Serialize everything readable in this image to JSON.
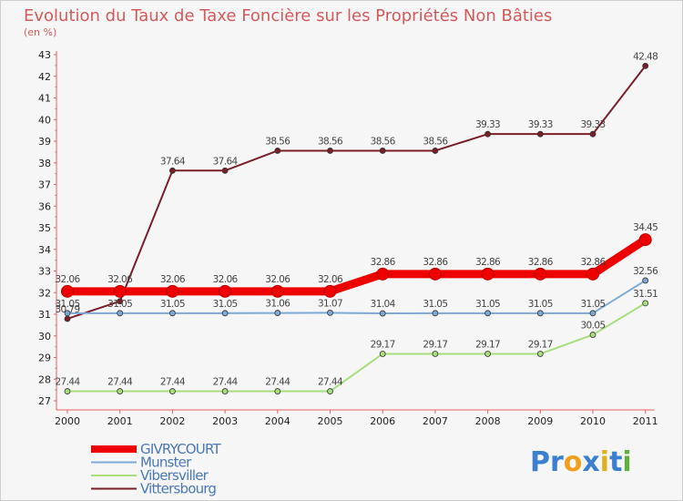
{
  "chart_data": {
    "type": "line",
    "title": "Evolution du Taux de Taxe Foncière sur les Propriétés Non Bâties",
    "subtitle": "(en %)",
    "xlabel": "",
    "ylabel": "",
    "categories": [
      "2000",
      "2001",
      "2002",
      "2003",
      "2004",
      "2005",
      "2006",
      "2007",
      "2008",
      "2009",
      "2010",
      "2011"
    ],
    "ylim": [
      27,
      43
    ],
    "yticks": [
      "27",
      "28",
      "29",
      "30",
      "31",
      "32",
      "33",
      "34",
      "35",
      "36",
      "37",
      "38",
      "39",
      "40",
      "41",
      "42",
      "43"
    ],
    "grid": false,
    "legend_position": "bottom-left",
    "series": [
      {
        "name": "Vittersbourg",
        "color": "#7a1f2a",
        "values": [
          30.79,
          31.6,
          37.64,
          37.64,
          38.56,
          38.56,
          38.56,
          38.56,
          39.33,
          39.33,
          39.33,
          42.48
        ],
        "labels": [
          "30.79",
          "",
          "37.64",
          "37.64",
          "38.56",
          "38.56",
          "38.56",
          "38.56",
          "39.33",
          "39.33",
          "39.33",
          "42.48"
        ]
      },
      {
        "name": "Vibersviller",
        "color": "#a8de7e",
        "values": [
          27.44,
          27.44,
          27.44,
          27.44,
          27.44,
          27.44,
          29.17,
          29.17,
          29.17,
          29.17,
          30.05,
          31.51
        ],
        "labels": [
          "27.44",
          "27.44",
          "27.44",
          "27.44",
          "27.44",
          "27.44",
          "29.17",
          "29.17",
          "29.17",
          "29.17",
          "30.05",
          "31.51"
        ]
      },
      {
        "name": "Munster",
        "color": "#7ea9d6",
        "values": [
          31.05,
          31.05,
          31.05,
          31.05,
          31.06,
          31.07,
          31.04,
          31.05,
          31.05,
          31.05,
          31.05,
          32.56
        ],
        "labels": [
          "31.05",
          "31.05",
          "31.05",
          "31.05",
          "31.06",
          "31.07",
          "31.04",
          "31.05",
          "31.05",
          "31.05",
          "31.05",
          "32.56"
        ]
      },
      {
        "name": "GIVRYCOURT",
        "color": "#ee0000",
        "values": [
          32.06,
          32.06,
          32.06,
          32.06,
          32.06,
          32.06,
          32.86,
          32.86,
          32.86,
          32.86,
          32.86,
          34.45
        ],
        "labels": [
          "32.06",
          "32.06",
          "32.06",
          "32.06",
          "32.06",
          "32.06",
          "32.86",
          "32.86",
          "32.86",
          "32.86",
          "32.86",
          "34.45"
        ]
      }
    ],
    "legend": [
      "GIVRYCOURT",
      "Munster",
      "Vibersviller",
      "Vittersbourg"
    ]
  },
  "logo": {
    "parts": [
      "Pr",
      "o",
      "x",
      "i",
      "t",
      "i"
    ],
    "colors": [
      "#3a7fd0",
      "#f0a020",
      "#3a7fd0",
      "#e0b020",
      "#3a7fd0",
      "#60b040"
    ]
  }
}
